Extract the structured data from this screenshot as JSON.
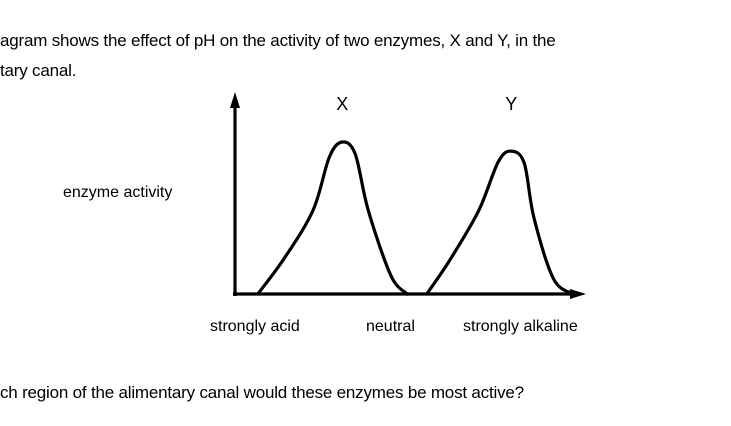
{
  "text": {
    "intro_line_1": "agram shows the effect of pH on the activity of two enzymes, X and Y, in the",
    "intro_line_2": "tary canal.",
    "question": "ch region of the alimentary canal would these enzymes be most active?"
  },
  "chart_data": {
    "type": "line",
    "ylabel": "enzyme activity",
    "xlabel": "",
    "categories": [
      "strongly acid",
      "neutral",
      "strongly alkaline"
    ],
    "x_range": [
      0,
      10
    ],
    "ylim": [
      0,
      1.25
    ],
    "grid": false,
    "series": [
      {
        "name": "X",
        "points": [
          [
            0.7,
            0.0
          ],
          [
            1.5,
            0.23
          ],
          [
            2.4,
            0.55
          ],
          [
            2.9,
            0.9
          ],
          [
            3.3,
            1.0
          ],
          [
            3.7,
            0.92
          ],
          [
            4.1,
            0.55
          ],
          [
            4.8,
            0.12
          ],
          [
            5.3,
            0.0
          ]
        ]
      },
      {
        "name": "Y",
        "points": [
          [
            5.9,
            0.0
          ],
          [
            6.6,
            0.22
          ],
          [
            7.5,
            0.55
          ],
          [
            8.1,
            0.87
          ],
          [
            8.5,
            0.94
          ],
          [
            8.9,
            0.86
          ],
          [
            9.2,
            0.5
          ],
          [
            9.8,
            0.1
          ],
          [
            10.4,
            0.0
          ]
        ]
      }
    ],
    "peak_labels": [
      "X",
      "Y"
    ]
  }
}
